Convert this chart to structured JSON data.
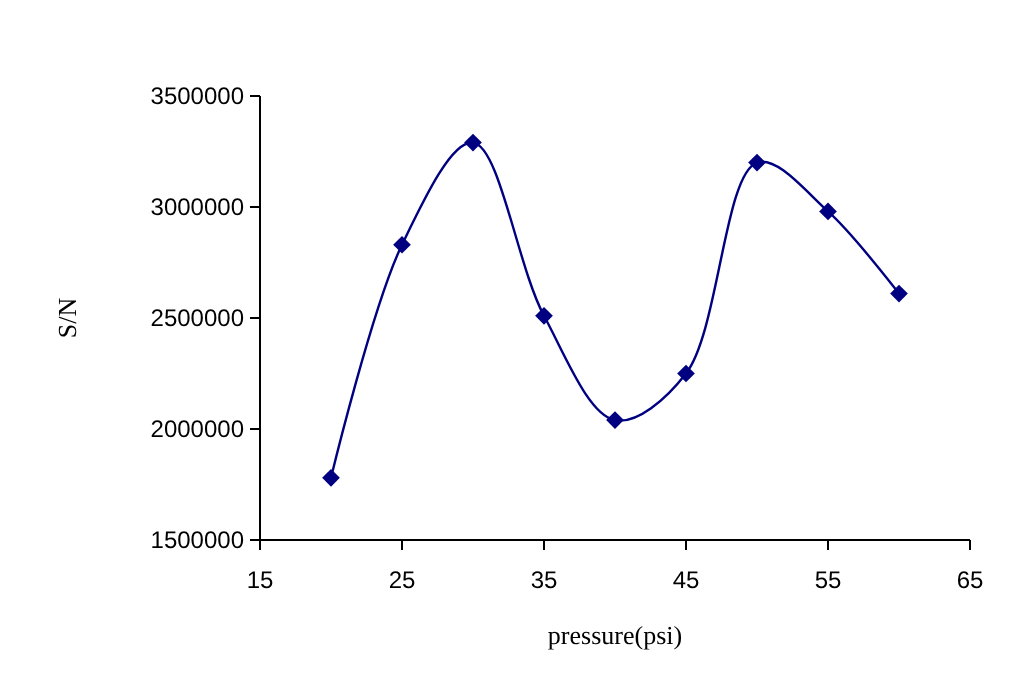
{
  "chart_data": {
    "type": "line",
    "xlabel": "pressure(psi)",
    "ylabel": "S/N",
    "x": [
      20,
      25,
      30,
      35,
      40,
      45,
      50,
      55,
      60
    ],
    "series": [
      {
        "color": "#000080",
        "values": [
          1780000,
          2830000,
          3290000,
          2510000,
          2040000,
          2250000,
          3200000,
          2980000,
          2610000
        ]
      }
    ],
    "xlim": [
      15,
      65
    ],
    "xticks": [
      15,
      25,
      35,
      45,
      55,
      65
    ],
    "ylim": [
      1500000,
      3500000
    ],
    "yticks": [
      1500000,
      2000000,
      2500000,
      3000000,
      3500000
    ],
    "grid": false,
    "marker": "diamond",
    "line_style": "solid"
  }
}
